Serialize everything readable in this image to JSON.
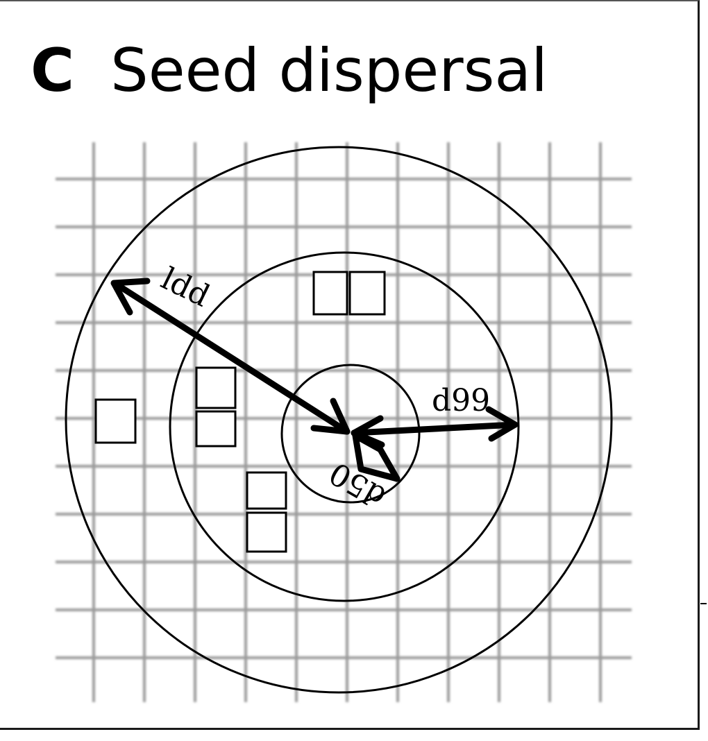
{
  "header": {
    "panel_letter": "C",
    "title": "Seed dispersal"
  },
  "labels": {
    "ldd": "ldd",
    "d99": "d99",
    "d50": "d50"
  }
}
